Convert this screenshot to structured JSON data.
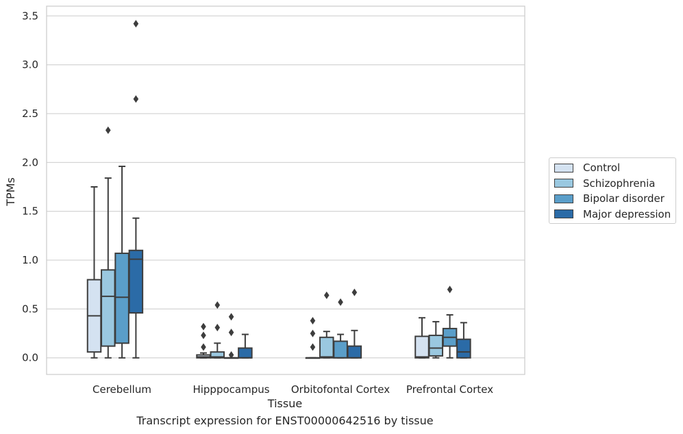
{
  "caption": "Transcript expression for ENST00000642516 by tissue",
  "chart_data": {
    "type": "box",
    "xlabel": "Tissue",
    "ylabel": "TPMs",
    "ylim": [
      -0.17,
      3.6
    ],
    "yticks": [
      "0.0",
      "0.5",
      "1.0",
      "1.5",
      "2.0",
      "2.5",
      "3.0",
      "3.5"
    ],
    "categories": [
      "Cerebellum",
      "Hipppocampus",
      "Orbitofontal Cortex",
      "Prefrontal Cortex"
    ],
    "grid": "horizontal",
    "legend_position": "outside-right",
    "series": [
      {
        "name": "Control",
        "color": "#d4e2f1",
        "boxes": [
          {
            "whislo": 0.0,
            "q1": 0.06,
            "med": 0.43,
            "q3": 0.8,
            "whishi": 1.75,
            "fliers": []
          },
          {
            "whislo": 0.0,
            "q1": 0.0,
            "med": 0.01,
            "q3": 0.03,
            "whishi": 0.05,
            "fliers": [
              0.11,
              0.23,
              0.32
            ]
          },
          {
            "whislo": 0.0,
            "q1": 0.0,
            "med": 0.0,
            "q3": 0.0,
            "whishi": 0.0,
            "fliers": [
              0.11,
              0.25,
              0.38
            ]
          },
          {
            "whislo": 0.0,
            "q1": 0.0,
            "med": 0.01,
            "q3": 0.22,
            "whishi": 0.41,
            "fliers": []
          }
        ]
      },
      {
        "name": "Schizophrenia",
        "color": "#9ac8e0",
        "boxes": [
          {
            "whislo": 0.0,
            "q1": 0.12,
            "med": 0.63,
            "q3": 0.9,
            "whishi": 1.84,
            "fliers": [
              2.33
            ]
          },
          {
            "whislo": 0.0,
            "q1": 0.0,
            "med": 0.01,
            "q3": 0.06,
            "whishi": 0.15,
            "fliers": [
              0.31,
              0.54
            ]
          },
          {
            "whislo": 0.0,
            "q1": 0.0,
            "med": 0.01,
            "q3": 0.21,
            "whishi": 0.27,
            "fliers": [
              0.64
            ]
          },
          {
            "whislo": 0.0,
            "q1": 0.02,
            "med": 0.1,
            "q3": 0.23,
            "whishi": 0.37,
            "fliers": []
          }
        ]
      },
      {
        "name": "Bipolar disorder",
        "color": "#5a9ec9",
        "boxes": [
          {
            "whislo": 0.0,
            "q1": 0.15,
            "med": 0.62,
            "q3": 1.07,
            "whishi": 1.96,
            "fliers": []
          },
          {
            "whislo": 0.0,
            "q1": 0.0,
            "med": 0.0,
            "q3": 0.0,
            "whishi": 0.0,
            "fliers": [
              0.03,
              0.26,
              0.42
            ]
          },
          {
            "whislo": 0.0,
            "q1": 0.0,
            "med": 0.0,
            "q3": 0.17,
            "whishi": 0.24,
            "fliers": [
              0.57
            ]
          },
          {
            "whislo": 0.0,
            "q1": 0.12,
            "med": 0.21,
            "q3": 0.3,
            "whishi": 0.44,
            "fliers": [
              0.7
            ]
          }
        ]
      },
      {
        "name": "Major depression",
        "color": "#2b6ba7",
        "boxes": [
          {
            "whislo": 0.0,
            "q1": 0.46,
            "med": 1.01,
            "q3": 1.1,
            "whishi": 1.43,
            "fliers": [
              2.65,
              3.42
            ]
          },
          {
            "whislo": 0.0,
            "q1": 0.0,
            "med": 0.0,
            "q3": 0.1,
            "whishi": 0.24,
            "fliers": []
          },
          {
            "whislo": 0.0,
            "q1": 0.0,
            "med": 0.0,
            "q3": 0.12,
            "whishi": 0.28,
            "fliers": [
              0.67
            ]
          },
          {
            "whislo": 0.0,
            "q1": 0.0,
            "med": 0.06,
            "q3": 0.19,
            "whishi": 0.36,
            "fliers": []
          }
        ]
      }
    ]
  }
}
